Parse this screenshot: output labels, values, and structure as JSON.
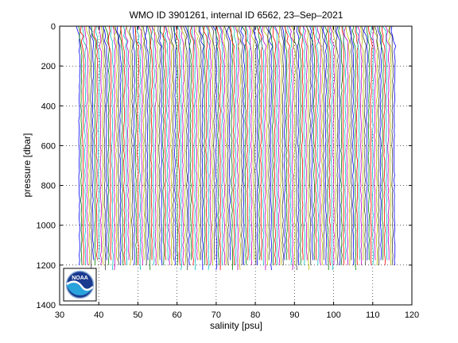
{
  "chart_data": {
    "type": "line",
    "title": "WMO ID 3901261, internal ID 6562, 23–Sep–2021",
    "xlabel": "salinity [psu]",
    "ylabel": "pressure [dbar]",
    "xlim": [
      30,
      120
    ],
    "ylim": [
      0,
      1400
    ],
    "y_reversed": true,
    "grid": "dotted",
    "x_ticks": [
      "30",
      "40",
      "50",
      "60",
      "70",
      "80",
      "90",
      "100",
      "110",
      "120"
    ],
    "y_ticks": [
      "0",
      "200",
      "400",
      "600",
      "800",
      "1000",
      "1200",
      "1400"
    ],
    "series_description": "waterfall of salinity profiles, each successive profile offset by ~0.5 psu",
    "profile_count": 162,
    "first_profile_start_salinity": 35.0,
    "salinity_offset_per_profile": 0.5,
    "typical_profile": {
      "pressure": [
        0,
        100,
        200,
        300,
        400,
        600,
        800,
        1000,
        1200
      ],
      "salinity_anomaly": [
        -0.6,
        0.0,
        0.15,
        0.1,
        0.0,
        -0.05,
        0.0,
        0.05,
        0.1
      ]
    },
    "max_pressure_range": [
      1190,
      1230
    ],
    "colors": [
      "#0000ff",
      "#007f00",
      "#ff0000",
      "#00bfbf",
      "#bf00bf",
      "#bfbf00",
      "#3f3f3f"
    ],
    "logo": "noaa-logo"
  }
}
